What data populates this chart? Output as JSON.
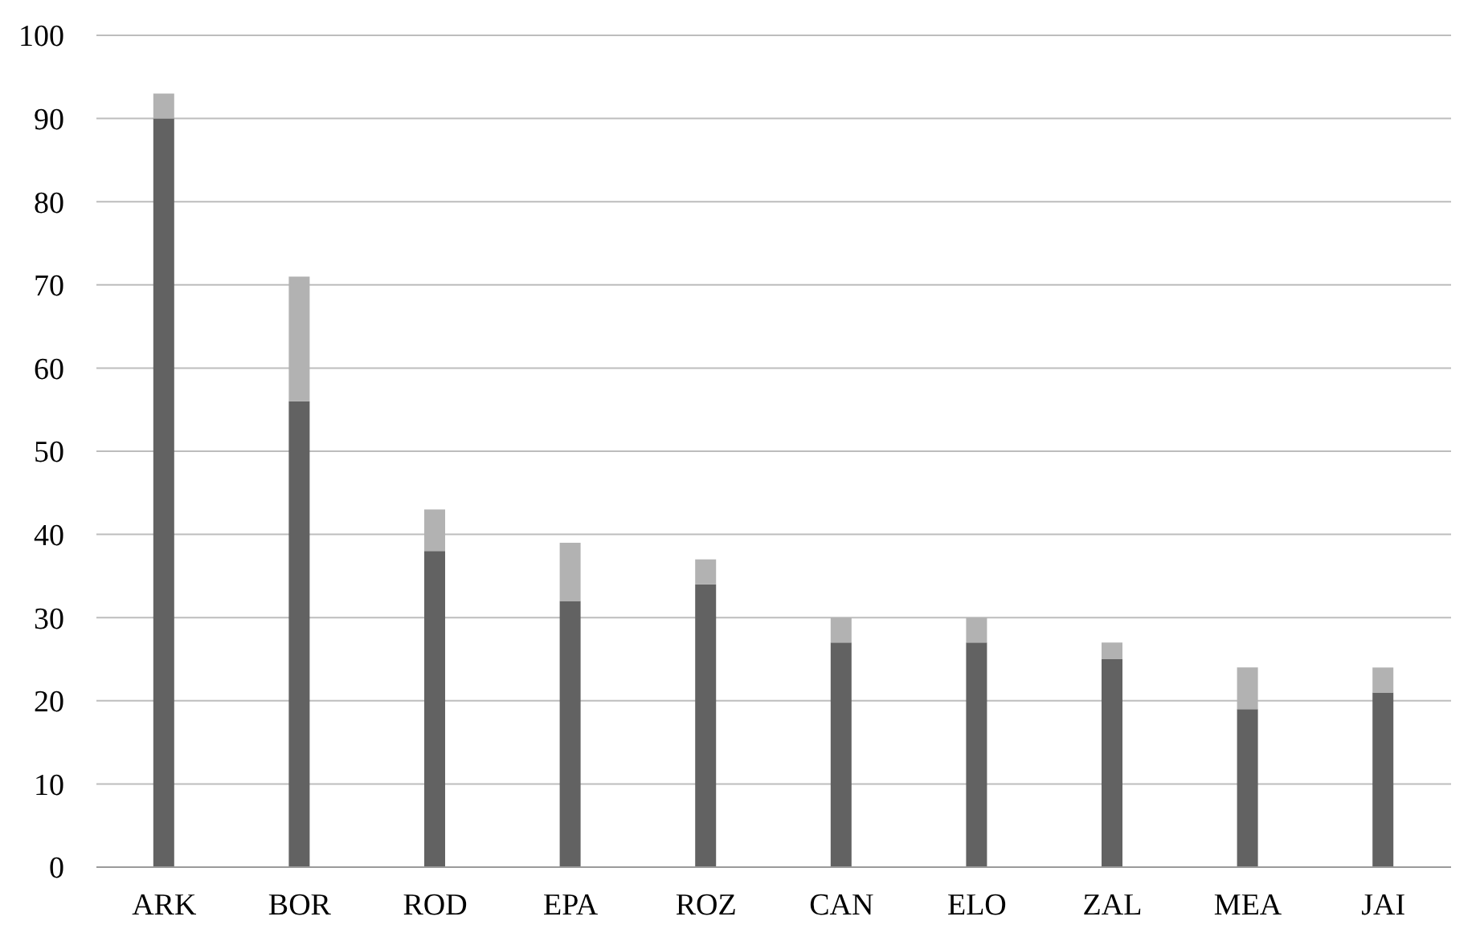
{
  "chart_data": {
    "type": "bar",
    "stacked": true,
    "categories": [
      "ARK",
      "BOR",
      "ROD",
      "EPA",
      "ROZ",
      "CAN",
      "ELO",
      "ZAL",
      "MEA",
      "JAI"
    ],
    "series": [
      {
        "color": "#626262",
        "values": [
          90,
          56,
          38,
          32,
          34,
          27,
          27,
          25,
          19,
          21
        ]
      },
      {
        "color": "#b2b2b2",
        "values": [
          3,
          15,
          5,
          7,
          3,
          3,
          3,
          2,
          5,
          3
        ]
      }
    ],
    "ylim": [
      0,
      100
    ],
    "yticks": [
      0,
      10,
      20,
      30,
      40,
      50,
      60,
      70,
      80,
      90,
      100
    ],
    "grid": "y",
    "legend": false
  }
}
